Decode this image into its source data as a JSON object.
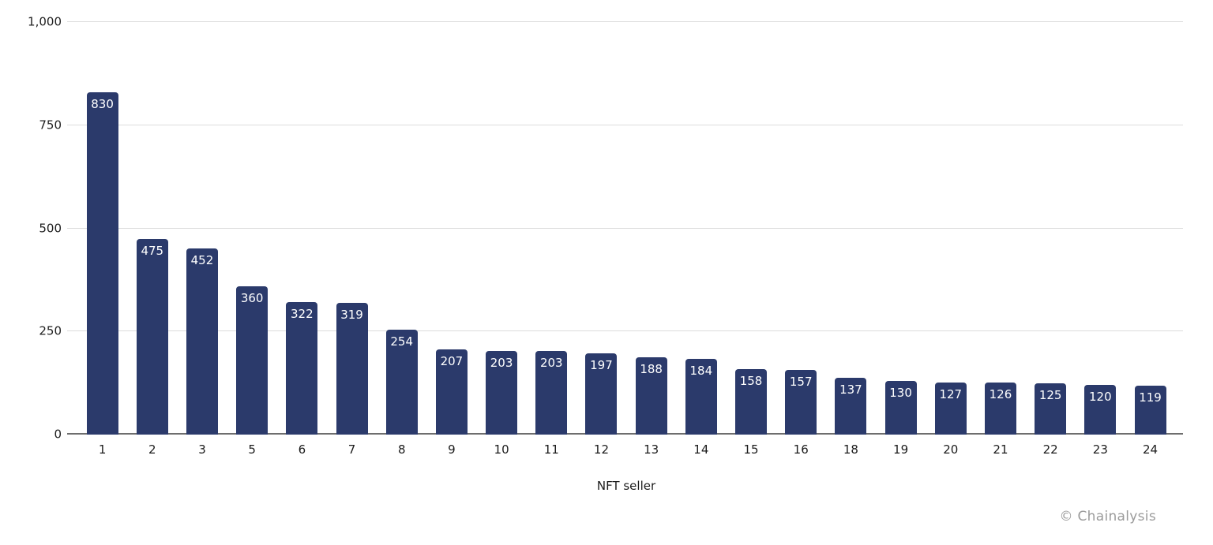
{
  "chart_data": {
    "type": "bar",
    "title": "",
    "xlabel": "NFT seller",
    "ylabel": "",
    "categories": [
      "1",
      "2",
      "3",
      "5",
      "6",
      "7",
      "8",
      "9",
      "10",
      "11",
      "12",
      "13",
      "14",
      "15",
      "16",
      "18",
      "19",
      "20",
      "21",
      "22",
      "23",
      "24"
    ],
    "values": [
      830,
      475,
      452,
      360,
      322,
      319,
      254,
      207,
      203,
      203,
      197,
      188,
      184,
      158,
      157,
      137,
      130,
      127,
      126,
      125,
      120,
      119
    ],
    "ylim": [
      0,
      1000
    ],
    "yticks": [
      0,
      250,
      500,
      750,
      1000
    ],
    "ytick_labels": [
      "0",
      "250",
      "500",
      "750",
      "1,000"
    ],
    "grid": true,
    "legend": "none",
    "bar_color": "#2b3a6b",
    "value_label_color": "#ffffff",
    "gridline_color": "#dcdcdc",
    "axis_line_color": "#6e6e6e"
  },
  "footer": {
    "attribution": "© Chainalysis"
  }
}
